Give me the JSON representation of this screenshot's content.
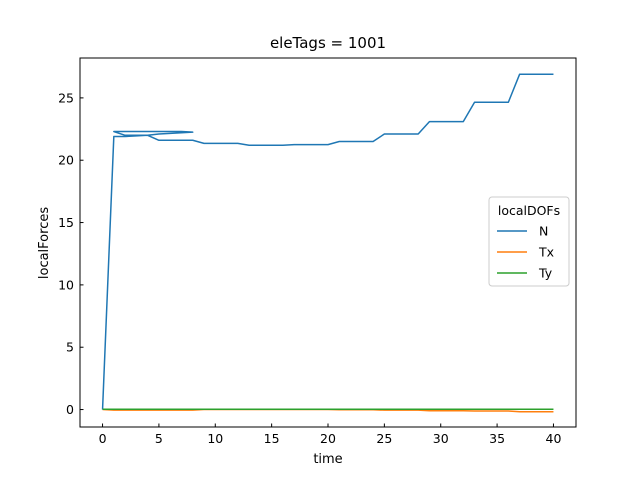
{
  "chart_data": {
    "type": "line",
    "title": "eleTags = 1001",
    "xlabel": "time",
    "ylabel": "localForces",
    "xlim": [
      -2,
      42
    ],
    "ylim": [
      -1.4,
      28.2
    ],
    "xticks": [
      0,
      5,
      10,
      15,
      20,
      25,
      30,
      35,
      40
    ],
    "yticks": [
      0,
      5,
      10,
      15,
      20,
      25
    ],
    "grid": false,
    "legend": {
      "title": "localDOFs",
      "placement": "center-right"
    },
    "series": [
      {
        "name": "N",
        "color": "#1f77b4",
        "x": [
          0,
          1,
          2,
          3,
          4,
          5,
          6,
          7,
          8,
          7,
          6,
          5,
          4,
          3,
          2,
          1,
          2,
          3,
          4,
          5,
          6,
          7,
          8,
          9,
          10,
          11,
          12,
          13,
          14,
          15,
          16,
          17,
          18,
          19,
          20,
          21,
          22,
          23,
          24,
          25,
          26,
          27,
          28,
          29,
          30,
          31,
          32,
          33,
          34,
          35,
          36,
          37,
          38,
          39,
          40
        ],
        "y": [
          0.0,
          21.9,
          21.9,
          21.95,
          22.0,
          22.1,
          22.15,
          22.2,
          22.25,
          22.3,
          22.3,
          22.3,
          22.3,
          22.3,
          22.3,
          22.3,
          22.0,
          22.0,
          22.0,
          21.6,
          21.6,
          21.6,
          21.6,
          21.35,
          21.35,
          21.35,
          21.35,
          21.2,
          21.2,
          21.2,
          21.2,
          21.25,
          21.25,
          21.25,
          21.25,
          21.5,
          21.5,
          21.5,
          21.5,
          22.1,
          22.1,
          22.1,
          22.1,
          23.1,
          23.1,
          23.1,
          23.1,
          24.65,
          24.65,
          24.65,
          24.65,
          26.9,
          26.9,
          26.9,
          26.9
        ]
      },
      {
        "name": "Tx",
        "color": "#ff7f0e",
        "x": [
          0,
          1,
          2,
          3,
          4,
          5,
          6,
          7,
          8,
          9,
          10,
          11,
          12,
          13,
          14,
          15,
          16,
          17,
          18,
          19,
          20,
          21,
          22,
          23,
          24,
          25,
          26,
          27,
          28,
          29,
          30,
          31,
          32,
          33,
          34,
          35,
          36,
          37,
          38,
          39,
          40
        ],
        "y": [
          0.0,
          -0.05,
          -0.05,
          -0.05,
          -0.05,
          -0.05,
          -0.05,
          -0.05,
          -0.05,
          0.0,
          0.0,
          0.0,
          0.0,
          0.0,
          0.0,
          0.0,
          0.0,
          0.0,
          0.0,
          0.0,
          0.0,
          -0.02,
          -0.02,
          -0.02,
          -0.02,
          -0.05,
          -0.05,
          -0.05,
          -0.05,
          -0.1,
          -0.1,
          -0.1,
          -0.1,
          -0.12,
          -0.12,
          -0.12,
          -0.12,
          -0.18,
          -0.18,
          -0.18,
          -0.18
        ]
      },
      {
        "name": "Ty",
        "color": "#2ca02c",
        "x": [
          0,
          40
        ],
        "y": [
          0.02,
          0.02
        ]
      }
    ]
  }
}
